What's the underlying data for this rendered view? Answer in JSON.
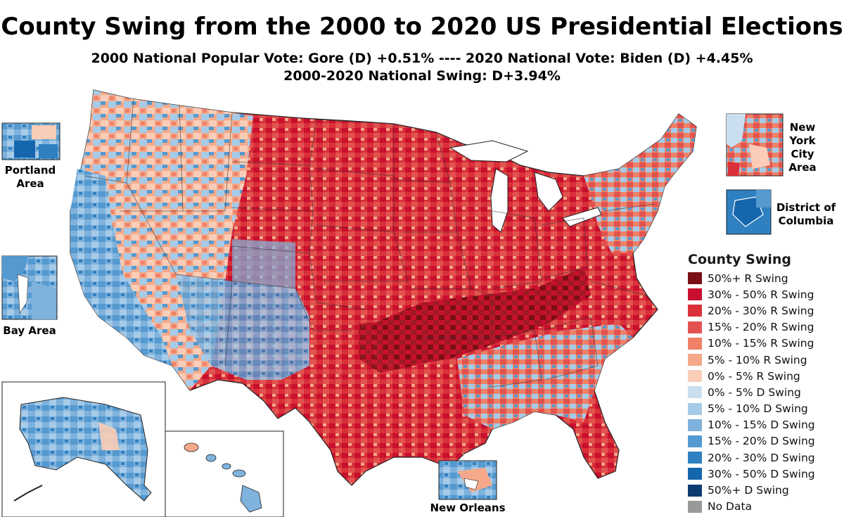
{
  "title": "County Swing from the 2000 to 2020 US Presidential Elections",
  "subtitle_line1": "2000 National Popular Vote: Gore (D) +0.51% ---- 2020 National Vote: Biden (D) +4.45%",
  "subtitle_line2": "2000-2020 National Swing: D+3.94%",
  "insets": {
    "portland": "Portland Area",
    "bay_area": "Bay Area",
    "new_york": "New York City Area",
    "dc": "District of Columbia",
    "new_orleans": "New Orleans"
  },
  "legend": {
    "title": "County Swing",
    "items": [
      {
        "label": "50%+ R Swing",
        "color": "#7a1014"
      },
      {
        "label": "30% - 50% R Swing",
        "color": "#c8102e"
      },
      {
        "label": "20% - 30% R Swing",
        "color": "#d9303a"
      },
      {
        "label": "15% - 20% R Swing",
        "color": "#e2534f"
      },
      {
        "label": "10% - 15% R Swing",
        "color": "#ee8168"
      },
      {
        "label": "5% - 10% R Swing",
        "color": "#f5a98a"
      },
      {
        "label": "0% - 5% R Swing",
        "color": "#f9cdb7"
      },
      {
        "label": "0% - 5% D Swing",
        "color": "#c9dff0"
      },
      {
        "label": "5% - 10% D Swing",
        "color": "#a6cbe8"
      },
      {
        "label": "10% - 15% D Swing",
        "color": "#7fb2dd"
      },
      {
        "label": "15% - 20% D Swing",
        "color": "#5499cf"
      },
      {
        "label": "20% - 30% D Swing",
        "color": "#2f80c0"
      },
      {
        "label": "30% - 50% D Swing",
        "color": "#1566ad"
      },
      {
        "label": "50%+ D Swing",
        "color": "#0d3d70"
      },
      {
        "label": "No Data",
        "color": "#999999"
      }
    ]
  }
}
